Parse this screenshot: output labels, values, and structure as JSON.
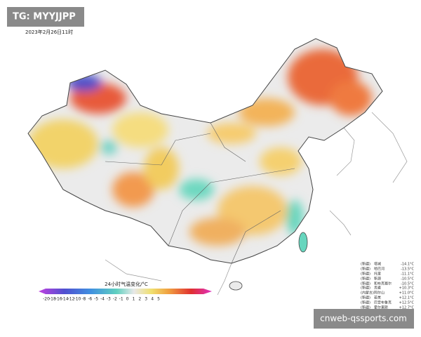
{
  "watermark": "TG: MYYJJPP",
  "timestamp": "2023年2月26日11时",
  "legend": {
    "title": "24小时气温变化/°C",
    "ticks": [
      "-20",
      "-18",
      "-16",
      "-14",
      "-12",
      "-10",
      "-8",
      "-6",
      "-5",
      "-4",
      "-3",
      "-2",
      "-1",
      "0",
      "1",
      "2",
      "3",
      "4",
      "5"
    ]
  },
  "stations_drop": [
    {
      "region": "(新疆)",
      "name": "塔城",
      "value": "-14.1°C"
    },
    {
      "region": "(新疆)",
      "name": "哈巴河",
      "value": "-13.5°C"
    },
    {
      "region": "(新疆)",
      "name": "托里",
      "value": "-11.1°C"
    },
    {
      "region": "(新疆)",
      "name": "新源",
      "value": "-10.5°C"
    },
    {
      "region": "(新疆)",
      "name": "和布克赛尔",
      "value": "-10.5°C"
    }
  ],
  "stations_rise": [
    {
      "region": "(新疆)",
      "name": "焉耆",
      "value": "+10.3°C"
    },
    {
      "region": "(内蒙古)",
      "name": "阿尔山",
      "value": "+11.0°C"
    },
    {
      "region": "(新疆)",
      "name": "若羌",
      "value": "+12.1°C"
    },
    {
      "region": "(新疆)",
      "name": "巴音布鲁克",
      "value": "+12.5°C"
    },
    {
      "region": "(新疆)",
      "name": "霍尔果斯",
      "value": "+12.7°C"
    }
  ],
  "footer": "cnweb-qssports.com"
}
